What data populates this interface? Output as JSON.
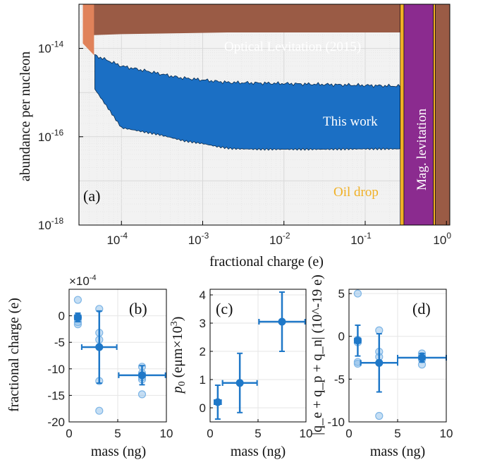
{
  "chart_data": [
    {
      "type": "area",
      "panel_label": "(a)",
      "xlabel": "fractional charge (e)",
      "ylabel": "abundance per nucleon",
      "x_scale": "log",
      "y_scale": "log",
      "xlim": [
        3e-05,
        1.1
      ],
      "ylim": [
        1e-18,
        1e-13
      ],
      "x_ticks": [
        0.0001,
        0.001,
        0.01,
        0.1,
        1
      ],
      "x_tick_labels": [
        "10",
        "10",
        "10",
        "10",
        "10"
      ],
      "x_tick_exponents": [
        "-4",
        "-3",
        "-2",
        "-1",
        "0"
      ],
      "y_ticks": [
        1e-18,
        1e-16,
        1e-14
      ],
      "y_tick_labels": [
        "10",
        "10",
        "10"
      ],
      "y_tick_exponents": [
        "-18",
        "-16",
        "-14"
      ],
      "grid": true,
      "regions": [
        {
          "name": "Optical Levitation (2015)",
          "color": "#9a5b45",
          "boundary_x": [
            3.35e-05,
            3.35e-05,
            4.6e-05,
            4.6e-05,
            0.0001,
            0.0005,
            0.002,
            0.01,
            0.05,
            0.27
          ],
          "boundary_y": [
            1e-13,
            1.3e-14,
            7e-15,
            2e-14,
            2.1e-14,
            2.2e-14,
            2.3e-14,
            2.3e-14,
            2.3e-14,
            2.3e-14
          ]
        },
        {
          "name": "This work",
          "color": "#1b6fc4",
          "boundary_x": [
            4.7e-05,
            4.7e-05,
            0.0001,
            0.0003,
            0.0006,
            0.001,
            0.0015,
            0.0022,
            0.003,
            0.005,
            0.01,
            0.03,
            0.1,
            0.27
          ],
          "boundary_y": [
            7e-15,
            1.2e-15,
            1.6e-16,
            1.1e-16,
            8e-17,
            7e-17,
            6e-17,
            5.4e-17,
            5.3e-17,
            5.2e-17,
            5.2e-17,
            5.2e-17,
            5.3e-17,
            5.3e-17
          ],
          "upper_boundary_x": [
            4.7e-05,
            0.0001,
            0.0005,
            0.002,
            0.01,
            0.05,
            0.27
          ],
          "upper_boundary_y": [
            7e-15,
            4e-15,
            2.2e-15,
            1.7e-15,
            1.6e-15,
            1.5e-15,
            1.4e-15
          ]
        },
        {
          "name": "Oil drop",
          "color": "#f0b025",
          "x_range": [
            0.27,
            0.3
          ],
          "label_only": false
        },
        {
          "name": "Mag. levitation",
          "color": "#8b2b8f",
          "x_range": [
            0.3,
            0.69
          ]
        },
        {
          "name": "",
          "color": "#f0b025",
          "x_range": [
            0.69,
            0.73
          ]
        },
        {
          "name": "",
          "color": "#9a5b45",
          "x_range": [
            0.73,
            1.1
          ]
        }
      ],
      "extra_region_color": "#e0825a"
    },
    {
      "type": "scatter",
      "panel_label": "(b)",
      "xlabel": "mass (ng)",
      "ylabel": "fractional charge (e)",
      "y_multiplier": "×10",
      "y_multiplier_exponent": "-4",
      "xlim": [
        0,
        10
      ],
      "ylim": [
        -20,
        5
      ],
      "x_ticks": [
        0,
        5,
        10
      ],
      "y_ticks": [
        0,
        -5,
        -10,
        -15,
        -20
      ],
      "grid": true,
      "points": [
        {
          "x": 0.9,
          "y": 3.0
        },
        {
          "x": 0.9,
          "y": -0.5
        },
        {
          "x": 0.9,
          "y": -1.2
        },
        {
          "x": 0.9,
          "y": -1.6
        },
        {
          "x": 0.9,
          "y": -0.2
        },
        {
          "x": 3.1,
          "y": 1.3
        },
        {
          "x": 3.1,
          "y": -3.2
        },
        {
          "x": 3.1,
          "y": -4.5
        },
        {
          "x": 3.1,
          "y": -12.3
        },
        {
          "x": 3.1,
          "y": -17.9
        },
        {
          "x": 3.1,
          "y": -5.9
        },
        {
          "x": 7.5,
          "y": -9.6
        },
        {
          "x": 7.5,
          "y": -10.8
        },
        {
          "x": 7.5,
          "y": -11.6
        },
        {
          "x": 7.5,
          "y": -12.0
        },
        {
          "x": 7.5,
          "y": -14.8
        }
      ],
      "means": [
        {
          "x": 0.9,
          "y": -0.3,
          "xerr": 0.3,
          "yerr": 0.8
        },
        {
          "x": 3.1,
          "y": -5.9,
          "xerr": 1.8,
          "yerr": 6.8
        },
        {
          "x": 7.5,
          "y": -11.2,
          "xerr": 2.4,
          "yerr": 1.8
        }
      ]
    },
    {
      "type": "scatter",
      "panel_label": "(c)",
      "xlabel": "mass (ng)",
      "ylabel": "p_0 (eμm×10^3)",
      "ylabel_parts": {
        "main": "p",
        "sub": "0",
        "rest": " (eμm×10",
        "sup": "3",
        "close": ")"
      },
      "xlim": [
        0,
        10
      ],
      "ylim": [
        -0.5,
        4.2
      ],
      "x_ticks": [
        0,
        5,
        10
      ],
      "y_ticks": [
        0,
        1,
        2,
        3,
        4
      ],
      "grid": true,
      "means": [
        {
          "x": 0.8,
          "y": 0.2,
          "xerr": 0.35,
          "yerr": 0.6
        },
        {
          "x": 3.1,
          "y": 0.88,
          "xerr": 1.8,
          "yerr": 1.05
        },
        {
          "x": 7.5,
          "y": 3.05,
          "xerr": 2.4,
          "yerr": 1.05
        }
      ]
    },
    {
      "type": "scatter",
      "panel_label": "(d)",
      "xlabel": "mass (ng)",
      "ylabel": "|q_e + q_p + q_n| (10^-19 e)",
      "xlim": [
        0,
        10
      ],
      "ylim": [
        -10,
        5.5
      ],
      "x_ticks": [
        0,
        5,
        10
      ],
      "y_ticks": [
        5,
        0,
        -5,
        -10
      ],
      "grid": true,
      "points": [
        {
          "x": 0.9,
          "y": 5.0
        },
        {
          "x": 0.9,
          "y": -0.4
        },
        {
          "x": 0.9,
          "y": -0.7
        },
        {
          "x": 0.9,
          "y": -3.0
        },
        {
          "x": 0.9,
          "y": -3.2
        },
        {
          "x": 3.1,
          "y": 0.7
        },
        {
          "x": 3.1,
          "y": -1.8
        },
        {
          "x": 3.1,
          "y": -2.4
        },
        {
          "x": 3.1,
          "y": -3.1
        },
        {
          "x": 3.1,
          "y": -9.3
        },
        {
          "x": 7.5,
          "y": -2.0
        },
        {
          "x": 7.5,
          "y": -2.3
        },
        {
          "x": 7.5,
          "y": -2.7
        },
        {
          "x": 7.5,
          "y": -3.3
        }
      ],
      "means": [
        {
          "x": 0.9,
          "y": -0.5,
          "xerr": 0.3,
          "yerr": 1.8
        },
        {
          "x": 3.1,
          "y": -3.1,
          "xerr": 1.9,
          "yerr": 3.4
        },
        {
          "x": 7.5,
          "y": -2.5,
          "xerr": 2.5,
          "yerr": 0.5
        }
      ]
    }
  ],
  "colors": {
    "marker": "#1f78c8",
    "marker_light": "#7fb6e6",
    "grid": "#e6e6e6",
    "axis": "#000000",
    "oil_label": "#f0b025"
  }
}
